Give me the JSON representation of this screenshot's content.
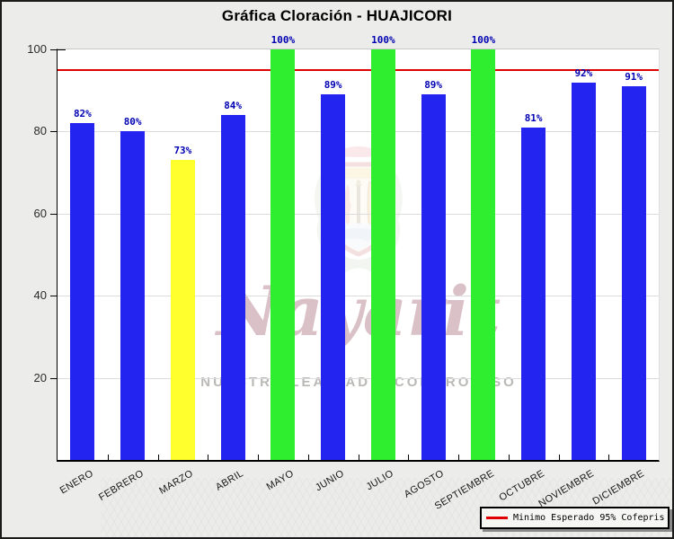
{
  "window": {
    "background": "#ECECEA",
    "border_color": "#1b1b1b"
  },
  "title": "Gráfica Cloración - HUAJICORI",
  "chart_data": {
    "type": "bar",
    "title": "Gráfica Cloración - HUAJICORI",
    "categories": [
      "ENERO",
      "FEBRERO",
      "MARZO",
      "ABRIL",
      "MAYO",
      "JUNIO",
      "JULIO",
      "AGOSTO",
      "SEPTIEMBRE",
      "OCTUBRE",
      "NOVIEMBRE",
      "DICIEMBRE"
    ],
    "values": [
      82,
      80,
      73,
      84,
      100,
      89,
      100,
      89,
      100,
      81,
      92,
      91
    ],
    "value_labels": [
      "82%",
      "80%",
      "73%",
      "84%",
      "100%",
      "89%",
      "100%",
      "89%",
      "100%",
      "81%",
      "92%",
      "91%"
    ],
    "bar_colors": [
      "#2424F0",
      "#2424F0",
      "#FFFF2E",
      "#2424F0",
      "#2FEE2F",
      "#2424F0",
      "#2FEE2F",
      "#2424F0",
      "#2FEE2F",
      "#2424F0",
      "#2424F0",
      "#2424F0"
    ],
    "xlabel": "",
    "ylabel": "",
    "ylim": [
      0,
      100
    ],
    "yticks": [
      20,
      40,
      60,
      80,
      100
    ],
    "grid": "horizontal",
    "reference_line": {
      "value": 95,
      "color": "#E00000",
      "label": "Minimo Esperado 95% Cofepris"
    },
    "legend_position": "bottom-right"
  },
  "legend": {
    "swatch_color": "#E00000",
    "label": "Minimo Esperado 95% Cofepris"
  },
  "colors": {
    "bar_blue": "#2424F0",
    "bar_green": "#2FEE2F",
    "bar_yellow": "#FFFF2E",
    "reference_line": "#E00000",
    "value_label": "#0000B3",
    "grid": "#DCDCDC",
    "axis": "#000000"
  },
  "watermark": {
    "emblem": "nayarit-coat-of-arms",
    "script_text": "Nayarit",
    "tagline": "NUESTRA LEALTAD Y COMPROMISO"
  }
}
